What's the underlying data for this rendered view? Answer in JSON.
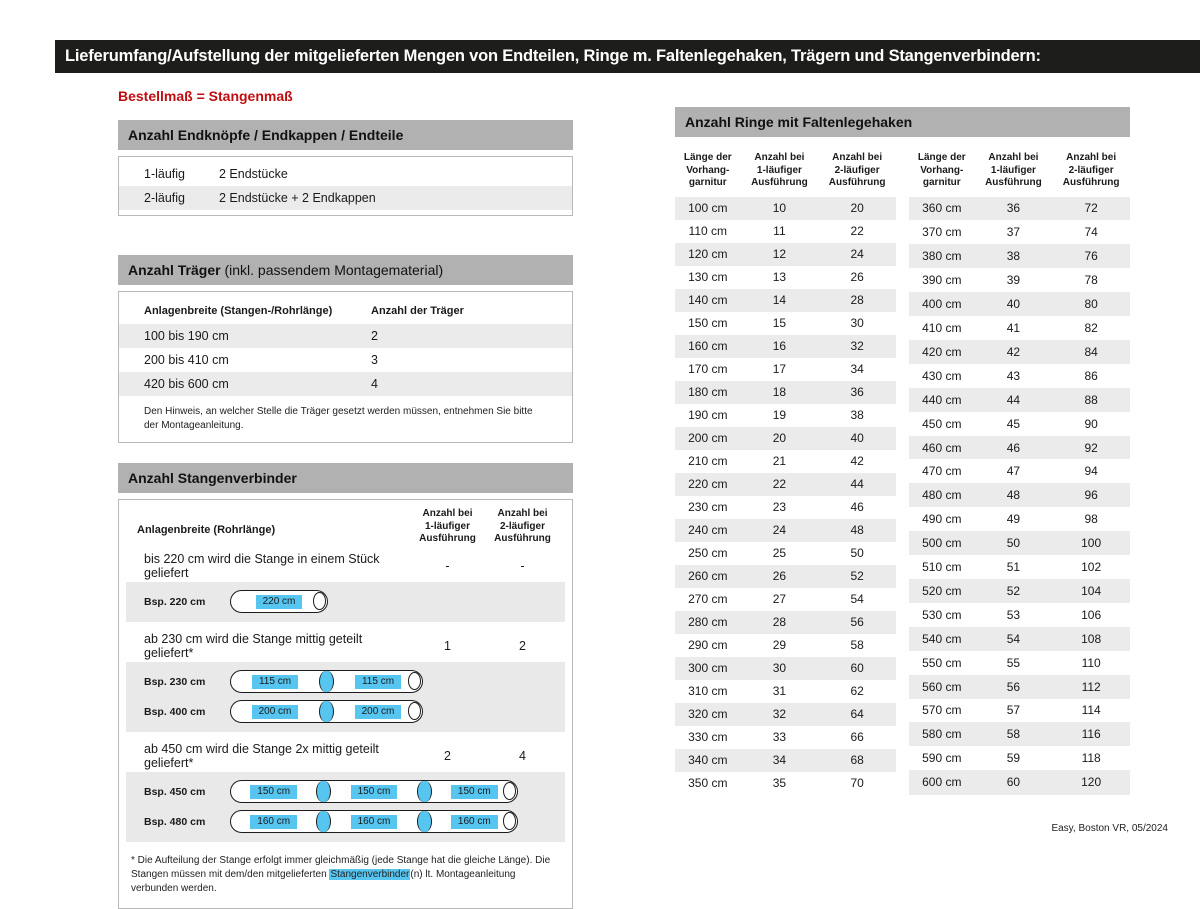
{
  "page": {
    "title": "Lieferumfang/Aufstellung der mitgelieferten Mengen von Endteilen, Ringe m. Faltenlegehaken, Trägern und Stangenverbindern:",
    "subtitle": "Bestellmaß = Stangenmaß",
    "footer": "Easy, Boston VR, 05/2024"
  },
  "colors": {
    "title_bar_black": "#1d1d1b",
    "accent_red": "#c00d12",
    "section_header_gray": "#b1b1b1",
    "row_zebra_gray": "#ebebeb",
    "example_band_gray": "#e9e9e9",
    "highlight_cyan": "#56c5f0"
  },
  "endteile": {
    "header": "Anzahl Endknöpfe / Endkappen / Endteile",
    "rows": [
      {
        "label": "1-läufig",
        "value": "2 Endstücke"
      },
      {
        "label": "2-läufig",
        "value": "2 Endstücke + 2 Endkappen"
      }
    ]
  },
  "traeger": {
    "header_bold": "Anzahl Träger",
    "header_rest": " (inkl. passendem Montagematerial)",
    "col_breite": "Anlagenbreite (Stangen-/Rohrlänge)",
    "col_anzahl": "Anzahl der Träger",
    "rows": [
      {
        "range": "100 bis 190 cm",
        "count": "2"
      },
      {
        "range": "200 bis 410 cm",
        "count": "3"
      },
      {
        "range": "420 bis 600 cm",
        "count": "4"
      }
    ],
    "note": "Den Hinweis, an welcher Stelle die Träger gesetzt werden müssen, entnehmen Sie bitte der Montageanleitung."
  },
  "verbinder": {
    "header": "Anzahl Stangenverbinder",
    "col_breite": "Anlagenbreite (Rohrlänge)",
    "col_1laeufig": "Anzahl bei\n1-läufiger\nAusführung",
    "col_2laeufig": "Anzahl bei\n2-läufiger\nAusführung",
    "groups": [
      {
        "text": "bis 220 cm wird die Stange in einem Stück geliefert",
        "count_1laeufig": "-",
        "count_2laeufig": "-",
        "examples": [
          {
            "label": "Bsp. 220 cm",
            "segments": [
              "220 cm"
            ]
          }
        ]
      },
      {
        "text": "ab 230 cm wird die Stange mittig geteilt geliefert*",
        "count_1laeufig": "1",
        "count_2laeufig": "2",
        "examples": [
          {
            "label": "Bsp. 230 cm",
            "segments": [
              "115 cm",
              "115 cm"
            ]
          },
          {
            "label": "Bsp. 400 cm",
            "segments": [
              "200 cm",
              "200 cm"
            ]
          }
        ]
      },
      {
        "text": "ab 450 cm wird die Stange 2x mittig geteilt geliefert*",
        "count_1laeufig": "2",
        "count_2laeufig": "4",
        "examples": [
          {
            "label": "Bsp. 450 cm",
            "segments": [
              "150 cm",
              "150 cm",
              "150 cm"
            ]
          },
          {
            "label": "Bsp. 480 cm",
            "segments": [
              "160 cm",
              "160 cm",
              "160 cm"
            ]
          }
        ]
      }
    ],
    "footnote_pre": "* Die Aufteilung der Stange erfolgt immer gleichmäßig (jede Stange hat die gleiche Länge). Die Stangen müssen mit dem/den mitgelieferten ",
    "footnote_highlight": "Stangenverbinder",
    "footnote_post": "(n) lt. Montageanleitung verbunden werden."
  },
  "ringe": {
    "header": "Anzahl Ringe mit Faltenlegehaken",
    "col_laenge": "Länge der\nVorhang-\ngarnitur",
    "col_1laeufig": "Anzahl bei\n1-läufiger\nAusführung",
    "col_2laeufig": "Anzahl bei\n2-läufiger\nAusführung",
    "table1": [
      [
        "100 cm",
        10,
        20
      ],
      [
        "110 cm",
        11,
        22
      ],
      [
        "120 cm",
        12,
        24
      ],
      [
        "130 cm",
        13,
        26
      ],
      [
        "140 cm",
        14,
        28
      ],
      [
        "150 cm",
        15,
        30
      ],
      [
        "160 cm",
        16,
        32
      ],
      [
        "170 cm",
        17,
        34
      ],
      [
        "180 cm",
        18,
        36
      ],
      [
        "190 cm",
        19,
        38
      ],
      [
        "200 cm",
        20,
        40
      ],
      [
        "210 cm",
        21,
        42
      ],
      [
        "220 cm",
        22,
        44
      ],
      [
        "230 cm",
        23,
        46
      ],
      [
        "240 cm",
        24,
        48
      ],
      [
        "250 cm",
        25,
        50
      ],
      [
        "260 cm",
        26,
        52
      ],
      [
        "270 cm",
        27,
        54
      ],
      [
        "280 cm",
        28,
        56
      ],
      [
        "290 cm",
        29,
        58
      ],
      [
        "300 cm",
        30,
        60
      ],
      [
        "310 cm",
        31,
        62
      ],
      [
        "320 cm",
        32,
        64
      ],
      [
        "330 cm",
        33,
        66
      ],
      [
        "340 cm",
        34,
        68
      ],
      [
        "350 cm",
        35,
        70
      ]
    ],
    "table2": [
      [
        "360 cm",
        36,
        72
      ],
      [
        "370 cm",
        37,
        74
      ],
      [
        "380 cm",
        38,
        76
      ],
      [
        "390 cm",
        39,
        78
      ],
      [
        "400 cm",
        40,
        80
      ],
      [
        "410 cm",
        41,
        82
      ],
      [
        "420 cm",
        42,
        84
      ],
      [
        "430 cm",
        43,
        86
      ],
      [
        "440 cm",
        44,
        88
      ],
      [
        "450 cm",
        45,
        90
      ],
      [
        "460 cm",
        46,
        92
      ],
      [
        "470 cm",
        47,
        94
      ],
      [
        "480 cm",
        48,
        96
      ],
      [
        "490 cm",
        49,
        98
      ],
      [
        "500 cm",
        50,
        100
      ],
      [
        "510 cm",
        51,
        102
      ],
      [
        "520 cm",
        52,
        104
      ],
      [
        "530 cm",
        53,
        106
      ],
      [
        "540 cm",
        54,
        108
      ],
      [
        "550 cm",
        55,
        110
      ],
      [
        "560 cm",
        56,
        112
      ],
      [
        "570 cm",
        57,
        114
      ],
      [
        "580 cm",
        58,
        116
      ],
      [
        "590 cm",
        59,
        118
      ],
      [
        "600 cm",
        60,
        120
      ]
    ]
  }
}
